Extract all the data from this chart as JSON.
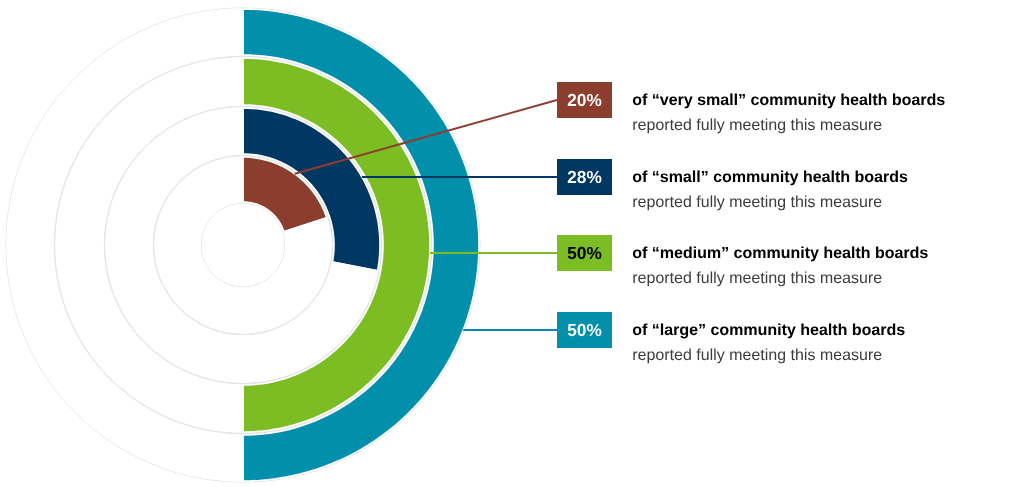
{
  "chart_data": {
    "type": "donut",
    "legend": "right",
    "series": [
      {
        "name": "of “very small” community health boards",
        "values": [
          20,
          80
        ],
        "colors": [
          "#8b3e2e",
          "#ffffff"
        ],
        "value_labels": [
          "20%",
          null
        ]
      },
      {
        "name": "of “small” community health boards",
        "values": [
          28,
          72
        ],
        "colors": [
          "#003763",
          "#ffffff"
        ],
        "value_labels": [
          "28%",
          null
        ]
      },
      {
        "name": "of “medium” community health boards",
        "values": [
          50,
          50
        ],
        "colors": [
          "#7bbd23",
          "#ffffff"
        ],
        "value_labels": [
          "50%",
          null
        ]
      },
      {
        "name": "of “large” community health boards",
        "values": [
          50,
          50
        ],
        "colors": [
          "#028fab",
          "#ffffff"
        ],
        "value_labels": [
          "50%",
          null
        ]
      }
    ],
    "annotations": [
      "reported fully meeting this measure",
      "reported fully meeting this measure",
      "reported fully meeting this measure",
      "reported fully meeting this measure"
    ]
  }
}
